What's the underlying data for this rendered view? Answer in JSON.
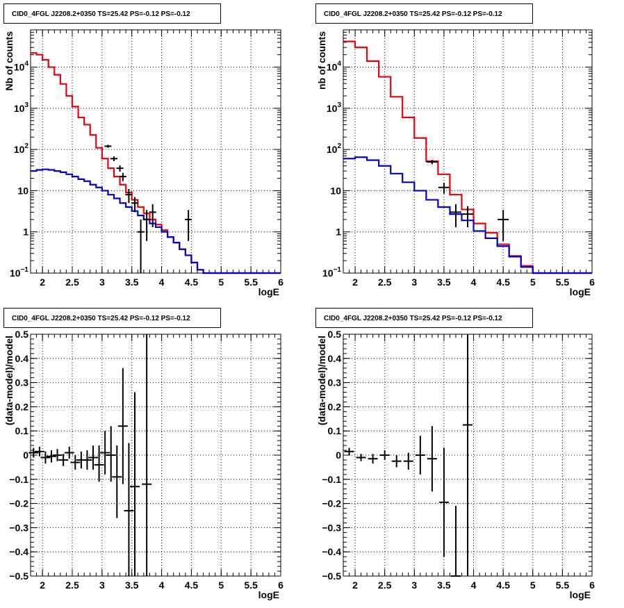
{
  "colors": {
    "model_total": "#e8000b",
    "model_background": "#0000d0",
    "data": "#000000"
  },
  "panels": [
    {
      "title": "CID0_4FGL J2208.2+0350 TS=25.42 PS=-0.12 PS=-0.12",
      "chart_data": {
        "type": "step-histogram",
        "ylog": true,
        "xlabel": "logE",
        "ylabel": "Nb of counts",
        "xlim": [
          1.8,
          6.0
        ],
        "ylim": [
          0.1,
          80000
        ],
        "x_ticks": [
          "2",
          "2.5",
          "3",
          "3.5",
          "4",
          "4.5",
          "5",
          "5.5",
          "6"
        ],
        "y_ticks": [
          "10^-1",
          "1",
          "10",
          "10^2",
          "10^3",
          "10^4"
        ],
        "bin_edges": [
          1.8,
          1.9,
          2.0,
          2.1,
          2.2,
          2.3,
          2.4,
          2.5,
          2.6,
          2.7,
          2.8,
          2.9,
          3.0,
          3.1,
          3.2,
          3.3,
          3.4,
          3.5,
          3.6,
          3.7,
          3.8,
          3.9,
          4.0,
          4.1,
          4.2,
          4.3,
          4.4,
          4.5,
          4.6,
          4.7,
          4.8,
          4.9,
          5.0,
          5.1,
          5.2,
          5.3,
          5.4,
          5.5,
          5.6,
          5.7,
          5.8,
          5.9,
          6.0
        ],
        "series": [
          {
            "key": "model_total",
            "values": [
              22000,
              20000,
              15000,
              10000,
              6500,
              3900,
              2000,
              1100,
              600,
              400,
              225,
              110,
              60,
              35,
              22,
              14,
              9,
              6,
              4,
              2.8,
              2.0,
              1.5,
              1.1,
              0.75,
              0.55,
              0.38,
              0.27,
              0.18,
              0.12,
              0.1,
              0.1,
              0.1,
              0.1,
              0.1,
              0.1,
              0.1,
              0.1,
              0.1,
              0.1,
              0.1,
              0.1,
              0.1
            ]
          },
          {
            "key": "model_background",
            "values": [
              30,
              32,
              33,
              32,
              30,
              28,
              25,
              22,
              19,
              17,
              14,
              12,
              10,
              8,
              6.5,
              5,
              4,
              3.2,
              2.5,
              2.0,
              1.6,
              1.3,
              1.0,
              0.75,
              0.55,
              0.38,
              0.27,
              0.18,
              0.12,
              0.1,
              0.1,
              0.1,
              0.1,
              0.1,
              0.1,
              0.1,
              0.1,
              0.1,
              0.1,
              0.1,
              0.1,
              0.1
            ]
          }
        ],
        "points": [
          {
            "x": 3.1,
            "y": 120,
            "lo": 110,
            "hi": 130
          },
          {
            "x": 3.2,
            "y": 60,
            "lo": 52,
            "hi": 68
          },
          {
            "x": 3.3,
            "y": 35,
            "lo": 29,
            "hi": 41
          },
          {
            "x": 3.35,
            "y": 22,
            "lo": 17,
            "hi": 27
          },
          {
            "x": 3.45,
            "y": 8,
            "lo": 5,
            "hi": 11
          },
          {
            "x": 3.55,
            "y": 5,
            "lo": 3,
            "hi": 7
          },
          {
            "x": 3.65,
            "y": 1,
            "lo": 0.1,
            "hi": 2
          },
          {
            "x": 3.75,
            "y": 2,
            "lo": 0.6,
            "hi": 3.4
          },
          {
            "x": 3.85,
            "y": 3,
            "lo": 1.3,
            "hi": 4.7
          },
          {
            "x": 4.45,
            "y": 2,
            "lo": 0.6,
            "hi": 3.4
          }
        ]
      }
    },
    {
      "title": "CID0_4FGL J2208.2+0350 TS=25.42 PS=-0.12 PS=-0.12",
      "chart_data": {
        "type": "step-histogram",
        "ylog": true,
        "xlabel": "logE",
        "ylabel": "nb of counts",
        "xlim": [
          1.8,
          6.0
        ],
        "ylim": [
          0.1,
          80000
        ],
        "x_ticks": [
          "2",
          "2.5",
          "3",
          "3.5",
          "4",
          "4.5",
          "5",
          "5.5",
          "6"
        ],
        "y_ticks": [
          "10^-1",
          "1",
          "10",
          "10^2",
          "10^3",
          "10^4"
        ],
        "bin_edges": [
          1.8,
          2.0,
          2.2,
          2.4,
          2.6,
          2.8,
          3.0,
          3.2,
          3.4,
          3.6,
          3.8,
          4.0,
          4.2,
          4.4,
          4.6,
          4.8,
          5.0,
          5.2,
          5.4,
          5.6,
          5.8,
          6.0
        ],
        "series": [
          {
            "key": "model_total",
            "values": [
              42000,
              30000,
              14000,
              5800,
              1900,
              600,
              190,
              52,
              25,
              8,
              3.5,
              1.6,
              0.95,
              0.5,
              0.26,
              0.15,
              0.1,
              0.1,
              0.1,
              0.1,
              0.1
            ]
          },
          {
            "key": "model_background",
            "values": [
              60,
              65,
              55,
              40,
              26,
              16,
              10,
              6,
              4,
              2.7,
              1.9,
              1.05,
              0.7,
              0.45,
              0.25,
              0.14,
              0.1,
              0.1,
              0.1,
              0.1,
              0.1
            ]
          }
        ],
        "points": [
          {
            "x": 3.3,
            "y": 50,
            "lo": 44,
            "hi": 56
          },
          {
            "x": 3.5,
            "y": 12,
            "lo": 8.5,
            "hi": 15.5
          },
          {
            "x": 3.7,
            "y": 3,
            "lo": 1.3,
            "hi": 4.7
          },
          {
            "x": 3.9,
            "y": 2.7,
            "lo": 1.3,
            "hi": 4.2
          },
          {
            "x": 4.5,
            "y": 2,
            "lo": 0.6,
            "hi": 3.4
          }
        ]
      }
    },
    {
      "title": "CID0_4FGL J2208.2+0350 TS=25.42 PS=-0.12 PS=-0.12",
      "chart_data": {
        "type": "scatter-errorbars",
        "ylog": false,
        "xlabel": "logE",
        "ylabel": "(data-model)/model",
        "xlim": [
          1.8,
          6.0
        ],
        "ylim": [
          -0.5,
          0.5
        ],
        "x_ticks": [
          "2",
          "2.5",
          "3",
          "3.5",
          "4",
          "4.5",
          "5",
          "5.5",
          "6"
        ],
        "y_ticks": [
          "-0.5",
          "-0.4",
          "-0.3",
          "-0.2",
          "-0.1",
          "0",
          "0.1",
          "0.2",
          "0.3",
          "0.4",
          "0.5"
        ],
        "points": [
          {
            "x": 1.85,
            "y": 0.01,
            "lo": -0.01,
            "hi": 0.03
          },
          {
            "x": 1.95,
            "y": 0.015,
            "lo": -0.005,
            "hi": 0.035
          },
          {
            "x": 2.05,
            "y": -0.01,
            "lo": -0.035,
            "hi": 0.015
          },
          {
            "x": 2.15,
            "y": -0.005,
            "lo": -0.03,
            "hi": 0.02
          },
          {
            "x": 2.25,
            "y": 0.0,
            "lo": -0.025,
            "hi": 0.025
          },
          {
            "x": 2.35,
            "y": -0.02,
            "lo": -0.045,
            "hi": 0.005
          },
          {
            "x": 2.45,
            "y": 0.01,
            "lo": -0.015,
            "hi": 0.035
          },
          {
            "x": 2.55,
            "y": -0.03,
            "lo": -0.06,
            "hi": 0.0
          },
          {
            "x": 2.65,
            "y": -0.02,
            "lo": -0.055,
            "hi": 0.015
          },
          {
            "x": 2.75,
            "y": -0.02,
            "lo": -0.06,
            "hi": 0.02
          },
          {
            "x": 2.85,
            "y": -0.01,
            "lo": -0.06,
            "hi": 0.04
          },
          {
            "x": 2.95,
            "y": -0.04,
            "lo": -0.11,
            "hi": 0.04
          },
          {
            "x": 3.05,
            "y": 0.01,
            "lo": -0.08,
            "hi": 0.1
          },
          {
            "x": 3.15,
            "y": 0.0,
            "lo": -0.11,
            "hi": 0.12
          },
          {
            "x": 3.25,
            "y": -0.09,
            "lo": -0.26,
            "hi": 0.04
          },
          {
            "x": 3.35,
            "y": 0.12,
            "lo": -0.12,
            "hi": 0.36
          },
          {
            "x": 3.45,
            "y": -0.23,
            "lo": -0.5,
            "hi": 0.05
          },
          {
            "x": 3.55,
            "y": -0.13,
            "lo": -0.5,
            "hi": 0.26
          },
          {
            "x": 3.75,
            "y": -0.12,
            "lo": -0.5,
            "hi": 0.5
          }
        ]
      }
    },
    {
      "title": "CID0_4FGL J2208.2+0350 TS=25.42 PS=-0.12 PS=-0.12",
      "chart_data": {
        "type": "scatter-errorbars",
        "ylog": false,
        "xlabel": "logE",
        "ylabel": "(data-model)/model",
        "xlim": [
          1.8,
          6.0
        ],
        "ylim": [
          -0.5,
          0.5
        ],
        "x_ticks": [
          "2",
          "2.5",
          "3",
          "3.5",
          "4",
          "4.5",
          "5",
          "5.5",
          "6"
        ],
        "y_ticks": [
          "-0.5",
          "-0.4",
          "-0.3",
          "-0.2",
          "-0.1",
          "0",
          "0.1",
          "0.2",
          "0.3",
          "0.4",
          "0.5"
        ],
        "points": [
          {
            "x": 1.9,
            "y": 0.015,
            "lo": 0.0,
            "hi": 0.03
          },
          {
            "x": 2.1,
            "y": -0.01,
            "lo": -0.025,
            "hi": 0.005
          },
          {
            "x": 2.3,
            "y": -0.015,
            "lo": -0.035,
            "hi": 0.005
          },
          {
            "x": 2.5,
            "y": 0.0,
            "lo": -0.02,
            "hi": 0.02
          },
          {
            "x": 2.7,
            "y": -0.025,
            "lo": -0.05,
            "hi": 0.0
          },
          {
            "x": 2.9,
            "y": -0.025,
            "lo": -0.06,
            "hi": 0.01
          },
          {
            "x": 3.1,
            "y": 0.0,
            "lo": -0.08,
            "hi": 0.08
          },
          {
            "x": 3.3,
            "y": -0.015,
            "lo": -0.15,
            "hi": 0.12
          },
          {
            "x": 3.5,
            "y": -0.195,
            "lo": -0.42,
            "hi": 0.03
          },
          {
            "x": 3.7,
            "y": -0.5,
            "lo": -0.5,
            "hi": -0.21
          },
          {
            "x": 3.9,
            "y": 0.125,
            "lo": -0.5,
            "hi": 0.5
          }
        ]
      }
    }
  ]
}
